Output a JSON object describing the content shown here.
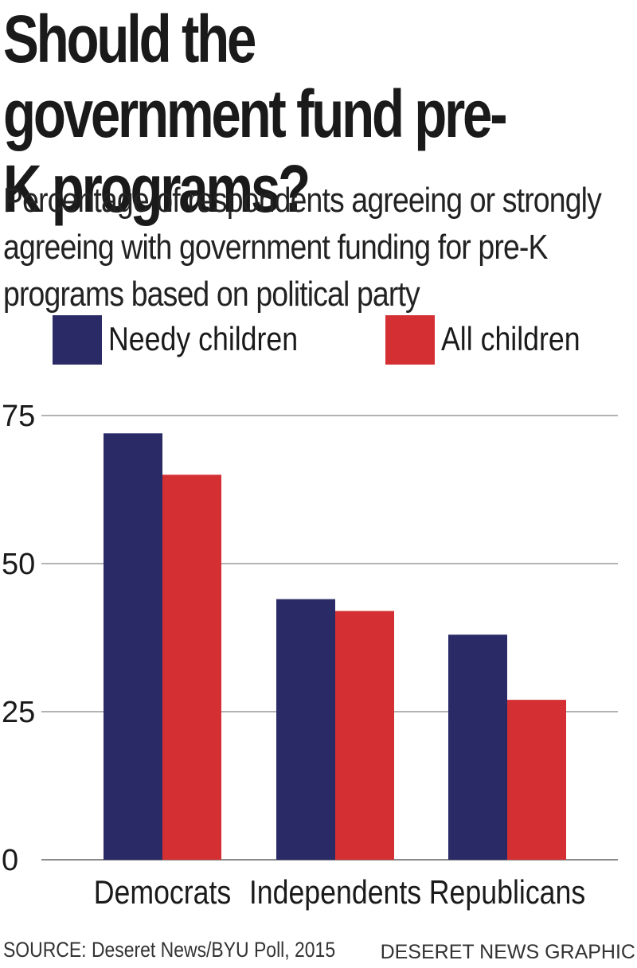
{
  "chart_data": {
    "type": "bar",
    "title": "Should the government fund pre-K programs?",
    "subtitle": "Percentage of respondents agreeing or strongly agreeing with government funding for pre-K programs based on political party",
    "categories": [
      "Democrats",
      "Independents",
      "Republicans"
    ],
    "series": [
      {
        "name": "Needy children",
        "color": "#2a2a66",
        "values": [
          72,
          44,
          38
        ]
      },
      {
        "name": "All children",
        "color": "#d42f32",
        "values": [
          65,
          42,
          27
        ]
      }
    ],
    "yticks": [
      0,
      25,
      50,
      75
    ],
    "ylim": [
      0,
      75
    ],
    "grid": true,
    "legend_position": "top",
    "xlabel": "",
    "ylabel": ""
  },
  "footer": {
    "source": "SOURCE: Deseret News/BYU Poll, 2015",
    "credit": "DESERET NEWS GRAPHIC"
  }
}
